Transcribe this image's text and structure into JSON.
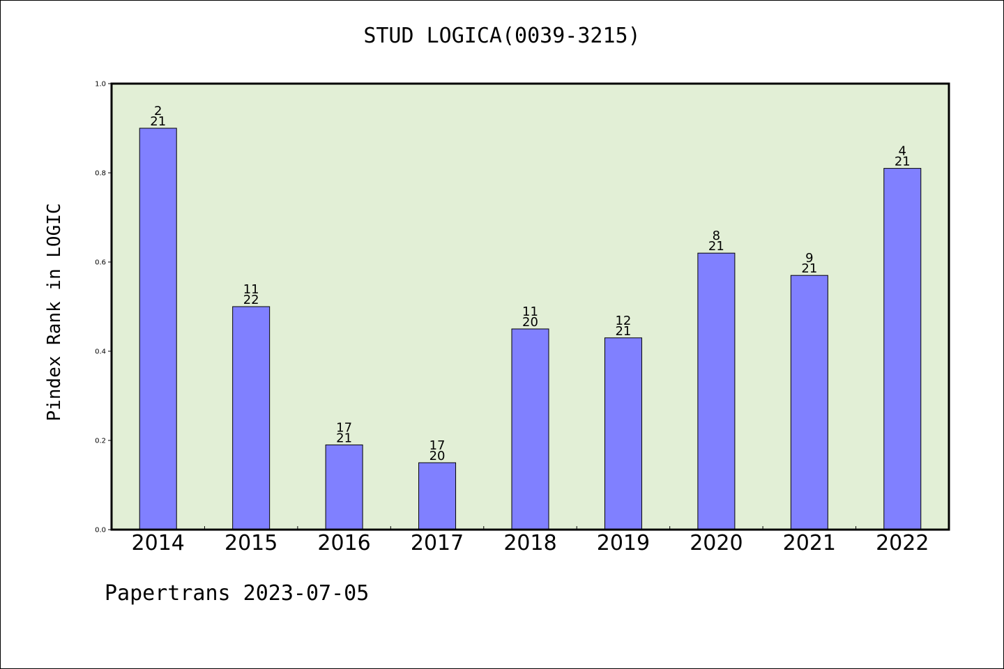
{
  "chart_data": {
    "type": "bar",
    "title": "STUD LOGICA(0039-3215)",
    "ylabel": "Pindex Rank in LOGIC",
    "xlabel": "",
    "ylim": [
      0,
      1.0
    ],
    "yticks": [
      "0.0",
      "0.2",
      "0.4",
      "0.6",
      "0.8",
      "1.0"
    ],
    "categories": [
      "2014",
      "2015",
      "2016",
      "2017",
      "2018",
      "2019",
      "2020",
      "2021",
      "2022"
    ],
    "values": [
      0.9,
      0.5,
      0.19,
      0.15,
      0.45,
      0.43,
      0.62,
      0.57,
      0.81
    ],
    "rank_labels": [
      {
        "rank": "2",
        "total": "21"
      },
      {
        "rank": "11",
        "total": "22"
      },
      {
        "rank": "17",
        "total": "21"
      },
      {
        "rank": "17",
        "total": "20"
      },
      {
        "rank": "11",
        "total": "20"
      },
      {
        "rank": "12",
        "total": "21"
      },
      {
        "rank": "8",
        "total": "21"
      },
      {
        "rank": "9",
        "total": "21"
      },
      {
        "rank": "4",
        "total": "21"
      }
    ],
    "grid": false,
    "colors": {
      "bar": "#8080ff",
      "plot_background": "#e2efd6",
      "axes": "#000000"
    }
  },
  "footer": "Papertrans 2023-07-05"
}
